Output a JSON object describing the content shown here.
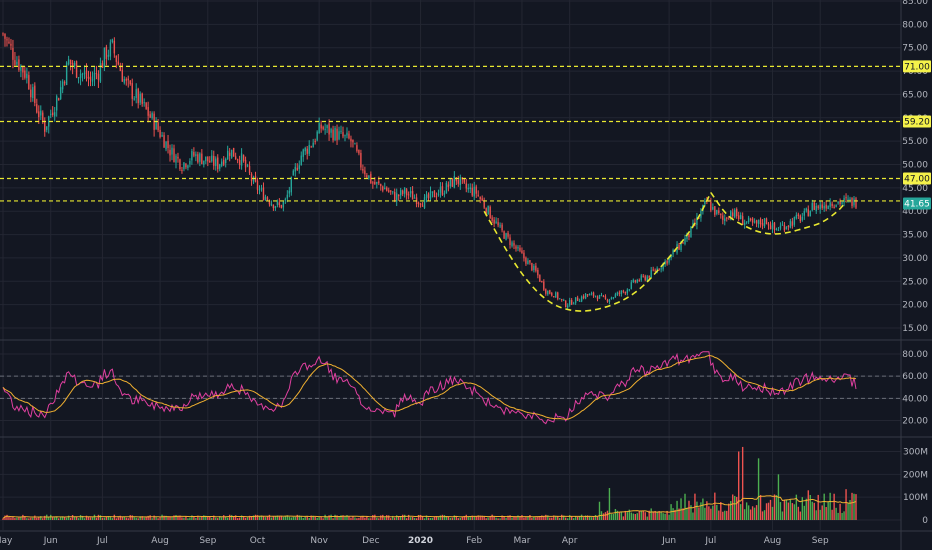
{
  "colors": {
    "background": "#131722",
    "grid": "#232632",
    "panel_border": "#363a45",
    "axis_text": "#b2b5be",
    "up": "#26a69a",
    "up_bright": "#4caf50",
    "down": "#ef5350",
    "level_line": "#e8e830",
    "label_bg": "#f5f24a",
    "price_label_bg": "#26a69a",
    "rsi_line": "#e040a0",
    "rsi_ma": "#f0b030",
    "vol_ma": "#f0b030"
  },
  "chart_data": [
    {
      "type": "candlestick",
      "panel": "price",
      "y_ticks": [
        "85.00",
        "80.00",
        "75.00",
        "70.00",
        "65.00",
        "60.00",
        "55.00",
        "50.00",
        "45.00",
        "40.00",
        "35.00",
        "30.00",
        "25.00",
        "20.00",
        "15.00"
      ],
      "ylim": [
        12,
        85
      ],
      "x_tick_labels": [
        "May",
        "Jun",
        "Jul",
        "Aug",
        "Sep",
        "Oct",
        "Nov",
        "Dec",
        "2020",
        "Feb",
        "Mar",
        "Apr",
        "Jun",
        "Jul",
        "Aug",
        "Sep"
      ],
      "x_tick_index": [
        0,
        24,
        50,
        79,
        103,
        128,
        159,
        185,
        210,
        237,
        261,
        285,
        335,
        356,
        387,
        411
      ],
      "n_bars": 430,
      "close_path": {
        "index": [
          0,
          6,
          12,
          17,
          21,
          28,
          33,
          38,
          44,
          48,
          52,
          55,
          62,
          68,
          76,
          84,
          90,
          96,
          102,
          108,
          114,
          120,
          126,
          130,
          135,
          139,
          142,
          148,
          150,
          156,
          160,
          165,
          170,
          175,
          180,
          186,
          192,
          197,
          202,
          207,
          212,
          218,
          223,
          228,
          232,
          238,
          244,
          250,
          256,
          262,
          268,
          273,
          278,
          283,
          288,
          293,
          298,
          303,
          308,
          313,
          318,
          324,
          330,
          335,
          341,
          345,
          349,
          354,
          358,
          362,
          366,
          372,
          378,
          384,
          388,
          393,
          398,
          403,
          407,
          411,
          416,
          422
        ],
        "value": [
          78,
          73,
          69,
          62,
          58,
          65,
          72,
          70,
          68,
          70,
          74,
          75,
          67,
          64,
          59,
          53,
          50,
          52,
          51,
          50,
          53,
          51,
          46,
          44,
          42,
          41,
          42,
          50,
          52,
          55,
          58,
          57,
          56,
          55,
          50,
          46,
          45,
          43,
          44,
          43,
          42,
          44,
          45,
          47,
          45,
          44,
          40,
          36,
          33,
          30,
          27,
          23,
          22,
          20,
          21,
          22,
          22,
          21,
          22,
          23,
          25,
          26,
          28,
          30,
          33,
          35,
          38,
          42,
          40,
          38,
          40,
          38,
          37,
          38,
          36,
          37,
          38,
          39,
          41,
          41,
          42,
          42
        ]
      },
      "volume_series": {
        "index": [
          300,
          305,
          340,
          355,
          358,
          370,
          372,
          380,
          390,
          402,
          405,
          415,
          418,
          424
        ],
        "value": [
          80,
          140,
          50,
          60,
          120,
          300,
          320,
          270,
          200,
          100,
          130,
          80,
          115,
          135
        ],
        "base": 18
      },
      "levels": [
        {
          "value": 71.0,
          "label": "71.00"
        },
        {
          "value": 59.2,
          "label": "59.20"
        },
        {
          "value": 47.0,
          "label": "47.00"
        }
      ],
      "support_line": {
        "value": 42.2
      },
      "current_price": "41.65",
      "pattern_curves": [
        {
          "name": "cup",
          "points_index": [
            242,
            258,
            272,
            285,
            300,
            318,
            335,
            348,
            356
          ],
          "points_value": [
            40,
            28,
            21,
            18.5,
            18.8,
            22,
            30,
            37,
            44
          ]
        },
        {
          "name": "handle",
          "points_index": [
            356,
            364,
            372,
            380,
            388,
            396,
            404,
            412,
            420,
            424
          ],
          "points_value": [
            44,
            39,
            37,
            35.5,
            35,
            35.5,
            36.5,
            37.5,
            40,
            42
          ]
        }
      ]
    },
    {
      "type": "line",
      "panel": "rsi",
      "y_ticks": [
        "80.00",
        "60.00",
        "40.00",
        "20.00"
      ],
      "ylim": [
        10,
        85
      ],
      "dashed_levels": [
        60,
        40
      ]
    },
    {
      "type": "bar",
      "panel": "volume",
      "y_ticks": [
        "300M",
        "200M",
        "100M",
        "0"
      ],
      "ylim": [
        0,
        330
      ]
    }
  ]
}
